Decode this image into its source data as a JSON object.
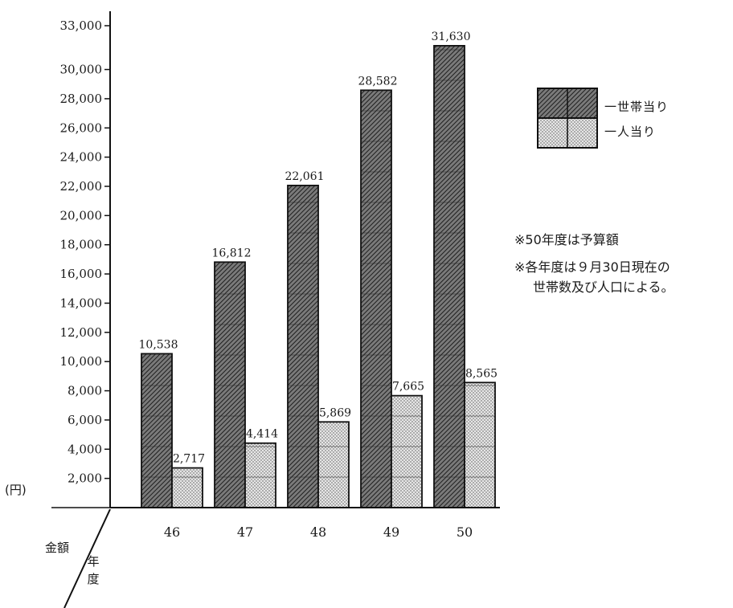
{
  "chart_data": {
    "type": "bar",
    "categories": [
      "46",
      "47",
      "48",
      "49",
      "50"
    ],
    "series": [
      {
        "name": "一世帯当り",
        "values": [
          10538,
          16812,
          22061,
          28582,
          31630
        ],
        "labels": [
          "10,538",
          "16,812",
          "22,061",
          "28,582",
          "31,630"
        ]
      },
      {
        "name": "一人当り",
        "values": [
          2717,
          4414,
          5869,
          7665,
          8565
        ],
        "labels": [
          "2,717",
          "4,414",
          "5,869",
          "7,665",
          "8,565"
        ]
      }
    ],
    "yticks": [
      2000,
      4000,
      6000,
      8000,
      10000,
      12000,
      14000,
      16000,
      18000,
      20000,
      22000,
      24000,
      26000,
      28000,
      30000,
      33000
    ],
    "ytick_labels": [
      "2,000",
      "4,000",
      "6,000",
      "8,000",
      "10,000",
      "12,000",
      "14,000",
      "16,000",
      "18,000",
      "20,000",
      "22,000",
      "24,000",
      "26,000",
      "28,000",
      "30,000",
      "33,000"
    ],
    "ylim": [
      0,
      33000
    ],
    "yunit": "(円)",
    "ylabel": "金額",
    "xlabel": "年度",
    "legend_position": "right",
    "notes": [
      "※50年度は予算額",
      "※各年度は９月30日現在の",
      "世帯数及び人口による。"
    ],
    "grid": false
  }
}
